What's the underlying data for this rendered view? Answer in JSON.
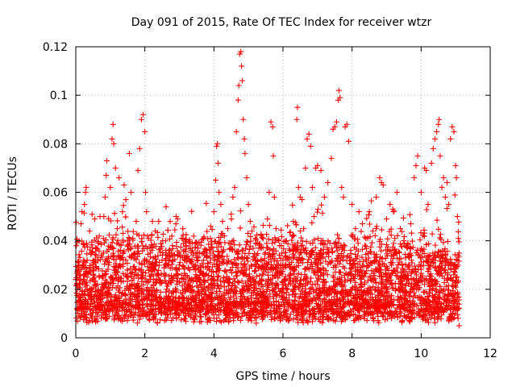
{
  "chart_data": {
    "type": "scatter",
    "title": "Day 091 of 2015, Rate Of TEC Index for receiver wtzr",
    "xlabel": "GPS time / hours",
    "ylabel": "ROTI / TECUs",
    "xlim": [
      0,
      12
    ],
    "ylim": [
      0,
      0.12
    ],
    "xticks": [
      0,
      2,
      4,
      6,
      8,
      10,
      12
    ],
    "yticks": [
      0,
      0.02,
      0.04,
      0.06,
      0.08,
      0.1,
      0.12
    ],
    "ytick_labels": [
      "0",
      "0.02",
      "0.04",
      "0.06",
      "0.08",
      "0.1",
      "0.12"
    ],
    "grid": true,
    "marker": "+",
    "color": "#ff0000",
    "series": [
      {
        "name": "ROTI",
        "points": [
          [
            0.05,
            0.02
          ],
          [
            0.08,
            0.031
          ],
          [
            0.12,
            0.015
          ],
          [
            0.15,
            0.047
          ],
          [
            0.18,
            0.052
          ],
          [
            0.22,
            0.012
          ],
          [
            0.25,
            0.055
          ],
          [
            0.28,
            0.06
          ],
          [
            0.3,
            0.062
          ],
          [
            0.33,
            0.025
          ],
          [
            0.35,
            0.018
          ],
          [
            0.4,
            0.044
          ],
          [
            0.45,
            0.035
          ],
          [
            0.5,
            0.028
          ],
          [
            0.55,
            0.049
          ],
          [
            0.6,
            0.016
          ],
          [
            0.65,
            0.039
          ],
          [
            0.7,
            0.05
          ],
          [
            0.75,
            0.022
          ],
          [
            0.8,
            0.041
          ],
          [
            0.85,
            0.058
          ],
          [
            0.88,
            0.067
          ],
          [
            0.9,
            0.073
          ],
          [
            0.95,
            0.03
          ],
          [
            1.0,
            0.062
          ],
          [
            1.05,
            0.082
          ],
          [
            1.08,
            0.088
          ],
          [
            1.1,
            0.08
          ],
          [
            1.15,
            0.07
          ],
          [
            1.2,
            0.045
          ],
          [
            1.25,
            0.066
          ],
          [
            1.3,
            0.033
          ],
          [
            1.35,
            0.052
          ],
          [
            1.4,
            0.063
          ],
          [
            1.45,
            0.057
          ],
          [
            1.5,
            0.04
          ],
          [
            1.55,
            0.076
          ],
          [
            1.6,
            0.06
          ],
          [
            1.65,
            0.041
          ],
          [
            1.7,
            0.035
          ],
          [
            1.75,
            0.048
          ],
          [
            1.8,
            0.069
          ],
          [
            1.85,
            0.078
          ],
          [
            1.9,
            0.09
          ],
          [
            1.95,
            0.092
          ],
          [
            2.0,
            0.085
          ],
          [
            2.02,
            0.06
          ],
          [
            2.05,
            0.052
          ],
          [
            2.1,
            0.041
          ],
          [
            2.2,
            0.036
          ],
          [
            2.3,
            0.044
          ],
          [
            2.4,
            0.048
          ],
          [
            2.5,
            0.032
          ],
          [
            2.6,
            0.04
          ],
          [
            2.7,
            0.035
          ],
          [
            2.8,
            0.038
          ],
          [
            2.9,
            0.047
          ],
          [
            2.95,
            0.049
          ],
          [
            3.0,
            0.03
          ],
          [
            3.1,
            0.041
          ],
          [
            3.2,
            0.038
          ],
          [
            3.3,
            0.028
          ],
          [
            3.4,
            0.035
          ],
          [
            3.5,
            0.033
          ],
          [
            3.6,
            0.027
          ],
          [
            3.7,
            0.032
          ],
          [
            3.8,
            0.036
          ],
          [
            3.9,
            0.041
          ],
          [
            4.0,
            0.052
          ],
          [
            4.05,
            0.065
          ],
          [
            4.08,
            0.079
          ],
          [
            4.1,
            0.08
          ],
          [
            4.12,
            0.072
          ],
          [
            4.15,
            0.06
          ],
          [
            4.2,
            0.055
          ],
          [
            4.25,
            0.048
          ],
          [
            4.3,
            0.042
          ],
          [
            4.4,
            0.045
          ],
          [
            4.5,
            0.051
          ],
          [
            4.55,
            0.058
          ],
          [
            4.6,
            0.062
          ],
          [
            4.65,
            0.085
          ],
          [
            4.7,
            0.098
          ],
          [
            4.72,
            0.104
          ],
          [
            4.75,
            0.117
          ],
          [
            4.78,
            0.118
          ],
          [
            4.8,
            0.112
          ],
          [
            4.82,
            0.106
          ],
          [
            4.85,
            0.09
          ],
          [
            4.88,
            0.082
          ],
          [
            4.9,
            0.076
          ],
          [
            4.95,
            0.066
          ],
          [
            5.0,
            0.055
          ],
          [
            5.05,
            0.048
          ],
          [
            5.1,
            0.044
          ],
          [
            5.2,
            0.041
          ],
          [
            5.3,
            0.037
          ],
          [
            5.4,
            0.03
          ],
          [
            5.5,
            0.028
          ],
          [
            5.55,
            0.049
          ],
          [
            5.6,
            0.06
          ],
          [
            5.65,
            0.089
          ],
          [
            5.7,
            0.087
          ],
          [
            5.72,
            0.075
          ],
          [
            5.75,
            0.058
          ],
          [
            5.8,
            0.045
          ],
          [
            5.9,
            0.038
          ],
          [
            6.0,
            0.032
          ],
          [
            6.1,
            0.04
          ],
          [
            6.2,
            0.036
          ],
          [
            6.3,
            0.048
          ],
          [
            6.4,
            0.09
          ],
          [
            6.42,
            0.095
          ],
          [
            6.45,
            0.062
          ],
          [
            6.5,
            0.058
          ],
          [
            6.55,
            0.057
          ],
          [
            6.6,
            0.045
          ],
          [
            6.65,
            0.07
          ],
          [
            6.7,
            0.082
          ],
          [
            6.75,
            0.084
          ],
          [
            6.8,
            0.079
          ],
          [
            6.85,
            0.062
          ],
          [
            6.9,
            0.05
          ],
          [
            6.95,
            0.07
          ],
          [
            7.0,
            0.071
          ],
          [
            7.1,
            0.069
          ],
          [
            7.2,
            0.058
          ],
          [
            7.3,
            0.064
          ],
          [
            7.4,
            0.074
          ],
          [
            7.45,
            0.086
          ],
          [
            7.5,
            0.087
          ],
          [
            7.55,
            0.089
          ],
          [
            7.6,
            0.098
          ],
          [
            7.62,
            0.102
          ],
          [
            7.65,
            0.099
          ],
          [
            7.7,
            0.062
          ],
          [
            7.75,
            0.058
          ],
          [
            7.8,
            0.087
          ],
          [
            7.85,
            0.088
          ],
          [
            7.9,
            0.081
          ],
          [
            8.0,
            0.055
          ],
          [
            8.1,
            0.045
          ],
          [
            8.2,
            0.052
          ],
          [
            8.3,
            0.047
          ],
          [
            8.4,
            0.041
          ],
          [
            8.5,
            0.052
          ],
          [
            8.6,
            0.044
          ],
          [
            8.7,
            0.058
          ],
          [
            8.8,
            0.066
          ],
          [
            8.85,
            0.064
          ],
          [
            8.9,
            0.063
          ],
          [
            9.0,
            0.049
          ],
          [
            9.1,
            0.055
          ],
          [
            9.2,
            0.052
          ],
          [
            9.3,
            0.06
          ],
          [
            9.4,
            0.045
          ],
          [
            9.5,
            0.04
          ],
          [
            9.6,
            0.037
          ],
          [
            9.7,
            0.047
          ],
          [
            9.8,
            0.066
          ],
          [
            9.85,
            0.071
          ],
          [
            9.9,
            0.075
          ],
          [
            10.0,
            0.06
          ],
          [
            10.1,
            0.07
          ],
          [
            10.15,
            0.069
          ],
          [
            10.2,
            0.055
          ],
          [
            10.3,
            0.072
          ],
          [
            10.35,
            0.078
          ],
          [
            10.4,
            0.082
          ],
          [
            10.45,
            0.085
          ],
          [
            10.5,
            0.088
          ],
          [
            10.52,
            0.09
          ],
          [
            10.55,
            0.075
          ],
          [
            10.6,
            0.062
          ],
          [
            10.65,
            0.066
          ],
          [
            10.7,
            0.058
          ],
          [
            10.75,
            0.064
          ],
          [
            10.8,
            0.055
          ],
          [
            10.85,
            0.082
          ],
          [
            10.9,
            0.087
          ],
          [
            10.95,
            0.085
          ],
          [
            11.0,
            0.071
          ],
          [
            11.02,
            0.066
          ],
          [
            11.05,
            0.05
          ],
          [
            11.08,
            0.041
          ],
          [
            11.1,
            0.005
          ]
        ]
      }
    ]
  }
}
